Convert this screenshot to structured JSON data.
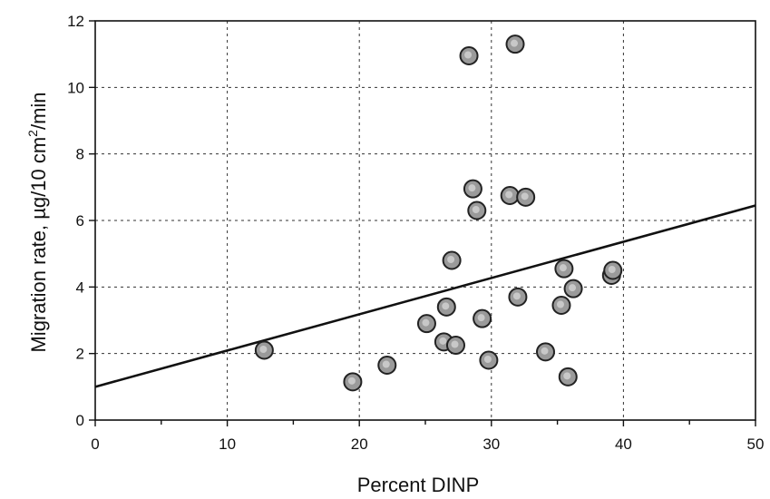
{
  "chart_data": {
    "type": "scatter",
    "xlabel": "Percent DINP",
    "ylabel_main": "Migration rate, µg/10 cm",
    "ylabel_sup": "2",
    "ylabel_tail": "/min",
    "xlim": [
      0,
      50
    ],
    "ylim": [
      0,
      12
    ],
    "xticks": [
      0,
      10,
      20,
      30,
      40,
      50
    ],
    "yticks": [
      0,
      2,
      4,
      6,
      8,
      10,
      12
    ],
    "grid": true,
    "points": [
      {
        "x": 12.8,
        "y": 2.1
      },
      {
        "x": 19.5,
        "y": 1.15
      },
      {
        "x": 22.1,
        "y": 1.65
      },
      {
        "x": 25.1,
        "y": 2.9
      },
      {
        "x": 26.4,
        "y": 2.35
      },
      {
        "x": 26.6,
        "y": 3.4
      },
      {
        "x": 27.0,
        "y": 4.8
      },
      {
        "x": 27.3,
        "y": 2.25
      },
      {
        "x": 28.3,
        "y": 10.95
      },
      {
        "x": 28.6,
        "y": 6.95
      },
      {
        "x": 28.9,
        "y": 6.3
      },
      {
        "x": 29.3,
        "y": 3.05
      },
      {
        "x": 29.8,
        "y": 1.8
      },
      {
        "x": 31.4,
        "y": 6.75
      },
      {
        "x": 31.8,
        "y": 11.3
      },
      {
        "x": 32.0,
        "y": 3.7
      },
      {
        "x": 32.6,
        "y": 6.7
      },
      {
        "x": 34.1,
        "y": 2.05
      },
      {
        "x": 35.3,
        "y": 3.45
      },
      {
        "x": 35.5,
        "y": 4.55
      },
      {
        "x": 35.8,
        "y": 1.3
      },
      {
        "x": 36.2,
        "y": 3.95
      },
      {
        "x": 39.1,
        "y": 4.35
      },
      {
        "x": 39.2,
        "y": 4.5
      }
    ],
    "fit_line": {
      "x": [
        0,
        50
      ],
      "y": [
        1.0,
        6.45
      ]
    }
  }
}
